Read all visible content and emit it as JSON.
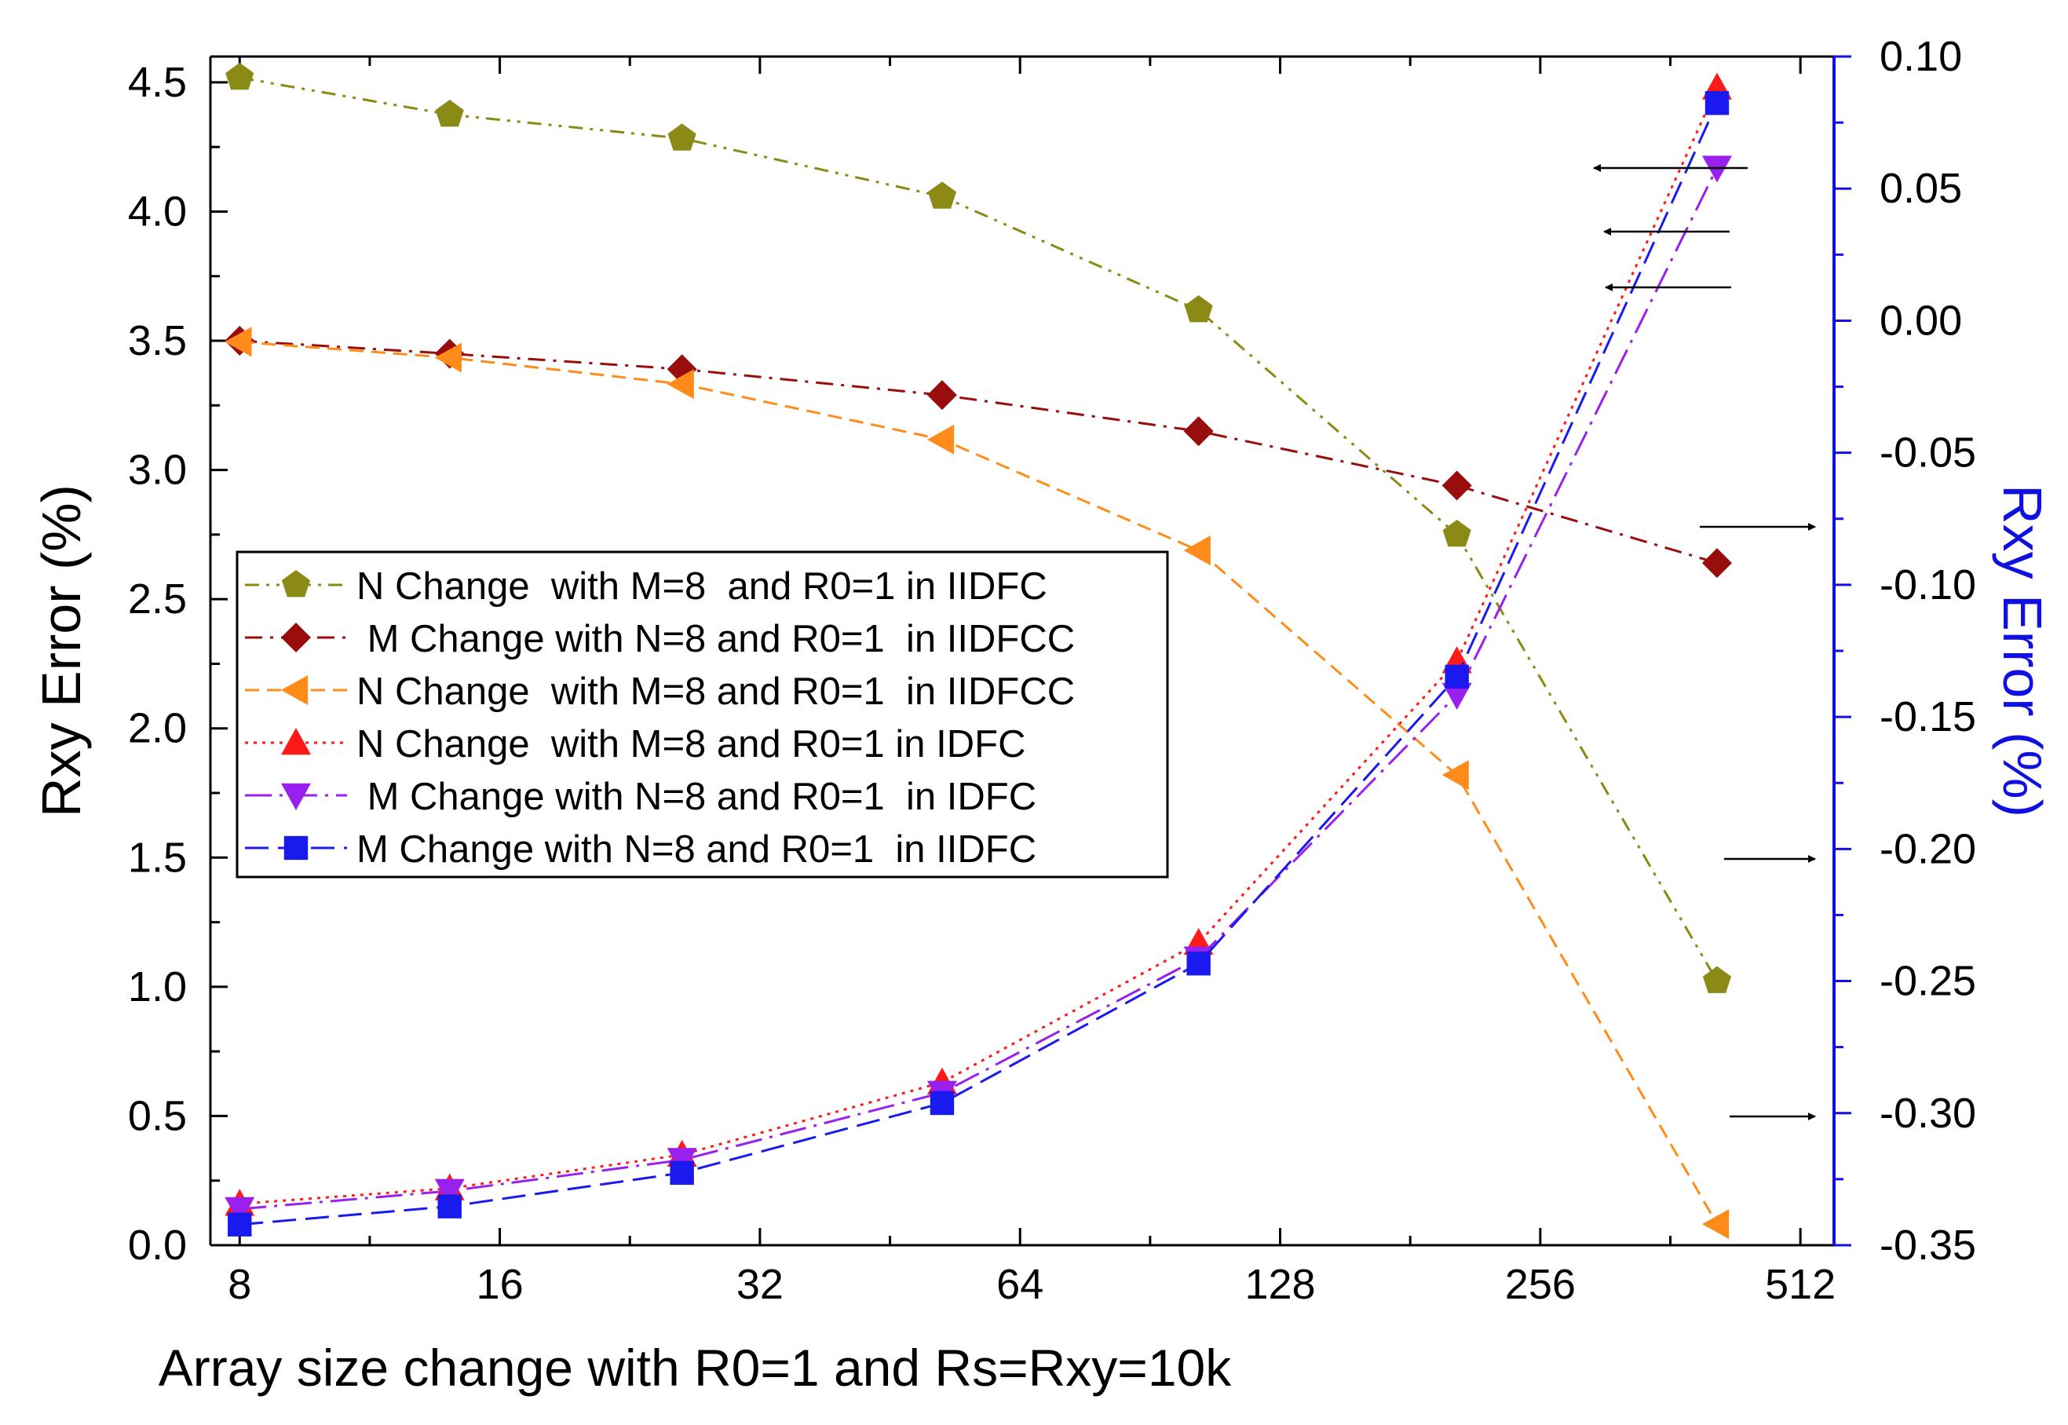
{
  "chart_data": {
    "type": "line",
    "xlabel": "Array size  change with R0=1 and Rs=Rxy=10k",
    "ylabel_left": "Rxy Error (%)",
    "ylabel_right": "Rxy Error (%)",
    "x_scale": "log2",
    "xlim": [
      7.4,
      560
    ],
    "ylim_left": [
      0,
      4.6
    ],
    "ylim_right": [
      -0.35,
      0.1
    ],
    "xticks": [
      8,
      16,
      32,
      64,
      128,
      256,
      512
    ],
    "xtick_labels": [
      "8",
      "16",
      "32",
      "64",
      "128",
      "256",
      "512"
    ],
    "yticks_left": [
      0,
      0.5,
      1.0,
      1.5,
      2.0,
      2.5,
      3.0,
      3.5,
      4.0,
      4.5
    ],
    "ytick_labels_left": [
      "0.0",
      "0.5",
      "1.0",
      "1.5",
      "2.0",
      "2.5",
      "3.0",
      "3.5",
      "4.0",
      "4.5"
    ],
    "yticks_right": [
      -0.35,
      -0.3,
      -0.25,
      -0.2,
      -0.15,
      -0.1,
      -0.05,
      0.0,
      0.05,
      0.1
    ],
    "ytick_labels_right": [
      "-0.35",
      "-0.30",
      "-0.25",
      "-0.20",
      "-0.15",
      "-0.10",
      "-0.05",
      "0.00",
      "0.05",
      "0.10"
    ],
    "right_axis_color": "#1010e0",
    "legend_position": "center-left",
    "series": [
      {
        "name": "N Change  with M=8  and R0=1 in IIDFC",
        "axis": "right",
        "color": "#8a8a14",
        "marker": "pentagon",
        "dash": "dashdotdot",
        "x": [
          8,
          14,
          26,
          52,
          103,
          205,
          410
        ],
        "values": [
          0.092,
          0.078,
          0.069,
          0.047,
          0.004,
          -0.081,
          -0.25
        ]
      },
      {
        "name": " M Change with N=8 and R0=1  in IIDFCC",
        "axis": "left",
        "color": "#9a0d0d",
        "marker": "diamond",
        "dash": "dashdot",
        "x": [
          8,
          14,
          26,
          52,
          103,
          205,
          410
        ],
        "values": [
          3.5,
          3.45,
          3.39,
          3.29,
          3.15,
          2.94,
          2.64
        ]
      },
      {
        "name": "N Change  with M=8 and R0=1  in IIDFCC",
        "axis": "right",
        "color": "#ff8c1a",
        "marker": "triangle-left",
        "dash": "dash",
        "x": [
          8,
          14,
          26,
          52,
          103,
          205,
          410
        ],
        "values": [
          -0.008,
          -0.014,
          -0.024,
          -0.045,
          -0.087,
          -0.172,
          -0.342
        ]
      },
      {
        "name": "N Change  with M=8 and R0=1 in IDFC",
        "axis": "left",
        "color": "#ff1a1a",
        "marker": "triangle-up",
        "dash": "dot",
        "x": [
          8,
          14,
          26,
          52,
          103,
          205,
          410
        ],
        "values": [
          0.16,
          0.22,
          0.35,
          0.63,
          1.17,
          2.26,
          4.48
        ]
      },
      {
        "name": " M Change with N=8 and R0=1  in IDFC",
        "axis": "left",
        "color": "#9a20ee",
        "marker": "triangle-down",
        "dash": "longdashdot",
        "x": [
          8,
          14,
          26,
          52,
          103,
          205,
          410
        ],
        "values": [
          0.14,
          0.21,
          0.33,
          0.59,
          1.11,
          2.13,
          4.17
        ]
      },
      {
        "name": "M Change with N=8 and R0=1  in IIDFC",
        "axis": "left",
        "color": "#1a1aee",
        "marker": "square",
        "dash": "longdash",
        "x": [
          8,
          14,
          26,
          52,
          103,
          205,
          410
        ],
        "values": [
          0.08,
          0.15,
          0.28,
          0.55,
          1.09,
          2.2,
          4.42
        ]
      }
    ],
    "arrows": [
      {
        "direction": "left",
        "target_axis": "left"
      },
      {
        "direction": "left",
        "target_axis": "left"
      },
      {
        "direction": "left",
        "target_axis": "left"
      },
      {
        "direction": "right",
        "target_axis": "right"
      },
      {
        "direction": "right",
        "target_axis": "right"
      },
      {
        "direction": "right",
        "target_axis": "right"
      }
    ]
  }
}
